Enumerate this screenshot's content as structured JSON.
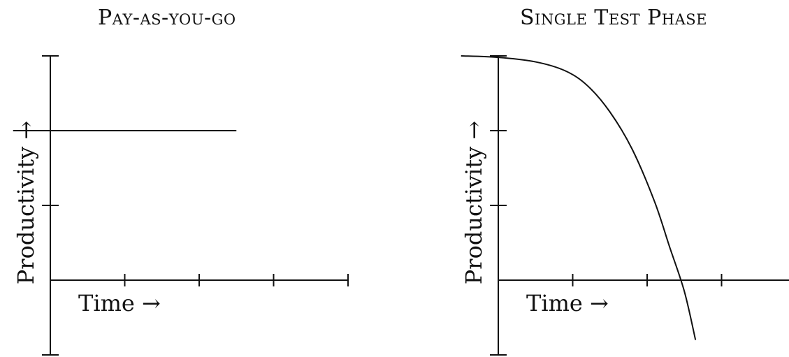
{
  "chart_data": [
    {
      "type": "line",
      "title": "Pay-as-you-go",
      "xlabel": "Time →",
      "ylabel": "Productivity →",
      "xlim": [
        0,
        4
      ],
      "ylim": [
        -1,
        3
      ],
      "x_ticks": [
        1,
        2,
        3,
        4
      ],
      "y_ticks": [
        -1,
        1,
        2,
        3
      ],
      "series": [
        {
          "x": [
            -0.5,
            2.5
          ],
          "y": [
            2,
            2
          ]
        }
      ]
    },
    {
      "type": "line",
      "title": "Single Test Phase",
      "xlabel": "Time →",
      "ylabel": "Productivity →",
      "xlim": [
        0,
        4
      ],
      "ylim": [
        -1,
        3
      ],
      "x_ticks": [
        1,
        2,
        3
      ],
      "y_ticks": [
        -1,
        1,
        2,
        3
      ],
      "series": [
        {
          "x": [
            -0.5,
            0,
            0.5,
            0.9,
            1.2,
            1.5,
            1.8,
            2.1,
            2.3,
            2.5,
            2.65
          ],
          "y": [
            3,
            2.98,
            2.92,
            2.8,
            2.6,
            2.25,
            1.75,
            1.05,
            0.45,
            -0.15,
            -0.8
          ]
        }
      ]
    }
  ]
}
